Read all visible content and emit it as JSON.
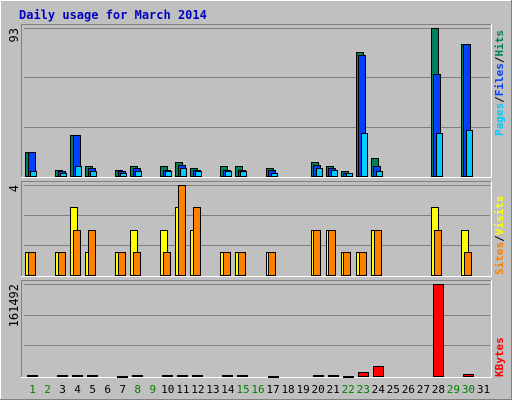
{
  "chart_data": {
    "type": "bar",
    "title": "Daily usage for March 2014",
    "days": [
      "1",
      "2",
      "3",
      "4",
      "5",
      "6",
      "7",
      "8",
      "9",
      "10",
      "11",
      "12",
      "13",
      "14",
      "15",
      "16",
      "17",
      "18",
      "19",
      "20",
      "21",
      "22",
      "23",
      "24",
      "25",
      "26",
      "27",
      "28",
      "29",
      "30",
      "31"
    ],
    "weekend_days": [
      "1",
      "2",
      "8",
      "9",
      "15",
      "16",
      "22",
      "23",
      "29",
      "30"
    ],
    "panels": [
      {
        "id": "hits-pages-files",
        "ymax_label": "93",
        "ymax": 93,
        "legend": [
          {
            "text": "Pages",
            "color": "#00ccff"
          },
          {
            "text": "/",
            "color": "#000000"
          },
          {
            "text": "Files",
            "color": "#0040ff"
          },
          {
            "text": "/",
            "color": "#000000"
          },
          {
            "text": "Hits",
            "color": "#00805c"
          }
        ],
        "series": [
          {
            "name": "Hits",
            "color": "#00805c",
            "values": [
              15,
              0,
              4,
              26,
              6,
              0,
              4,
              6,
              0,
              6,
              9,
              5,
              0,
              6,
              6,
              0,
              5,
              0,
              0,
              9,
              6,
              3,
              78,
              11,
              0,
              0,
              0,
              93,
              0,
              83,
              0
            ]
          },
          {
            "name": "Files",
            "color": "#0040ff",
            "values": [
              15,
              0,
              3,
              26,
              5,
              0,
              3,
              5,
              0,
              4,
              7,
              4,
              0,
              4,
              4,
              0,
              4,
              0,
              0,
              7,
              5,
              2,
              76,
              6,
              0,
              0,
              0,
              64,
              0,
              83,
              0
            ]
          },
          {
            "name": "Pages",
            "color": "#00ccff",
            "values": [
              3,
              0,
              2,
              6,
              3,
              0,
              2,
              3,
              0,
              3,
              5,
              3,
              0,
              3,
              3,
              0,
              2,
              0,
              0,
              5,
              4,
              2,
              27,
              3,
              0,
              0,
              0,
              27,
              0,
              29,
              0
            ]
          }
        ]
      },
      {
        "id": "visits-sites",
        "ymax_label": "4",
        "ymax": 4,
        "legend": [
          {
            "text": "Sites",
            "color": "#ff8000"
          },
          {
            "text": "/",
            "color": "#000000"
          },
          {
            "text": "Visits",
            "color": "#ffff00"
          }
        ],
        "series": [
          {
            "name": "Visits",
            "color": "#ffff00",
            "values": [
              1,
              0,
              1,
              3,
              1,
              0,
              1,
              2,
              0,
              2,
              3,
              2,
              0,
              1,
              1,
              0,
              1,
              0,
              0,
              2,
              2,
              1,
              1,
              2,
              0,
              0,
              0,
              3,
              0,
              2,
              0
            ]
          },
          {
            "name": "Sites",
            "color": "#ff8000",
            "values": [
              1,
              0,
              1,
              2,
              2,
              0,
              1,
              1,
              0,
              1,
              4,
              3,
              0,
              1,
              1,
              0,
              1,
              0,
              0,
              2,
              2,
              1,
              1,
              2,
              0,
              0,
              0,
              2,
              0,
              1,
              0
            ]
          }
        ]
      },
      {
        "id": "kbytes",
        "ymax_label": "161492",
        "ymax": 161492,
        "legend": [
          {
            "text": "KBytes",
            "color": "#ff0000"
          }
        ],
        "series": [
          {
            "name": "KBytes",
            "color": "#ff0000",
            "values": [
              1200,
              0,
              900,
              1600,
              1100,
              0,
              800,
              1000,
              0,
              900,
              1400,
              1000,
              0,
              900,
              900,
              0,
              800,
              0,
              0,
              1400,
              1100,
              700,
              6500,
              17000,
              0,
              0,
              0,
              161492,
              0,
              3800,
              0
            ]
          }
        ]
      }
    ],
    "grid": true,
    "legend_position": "right"
  }
}
